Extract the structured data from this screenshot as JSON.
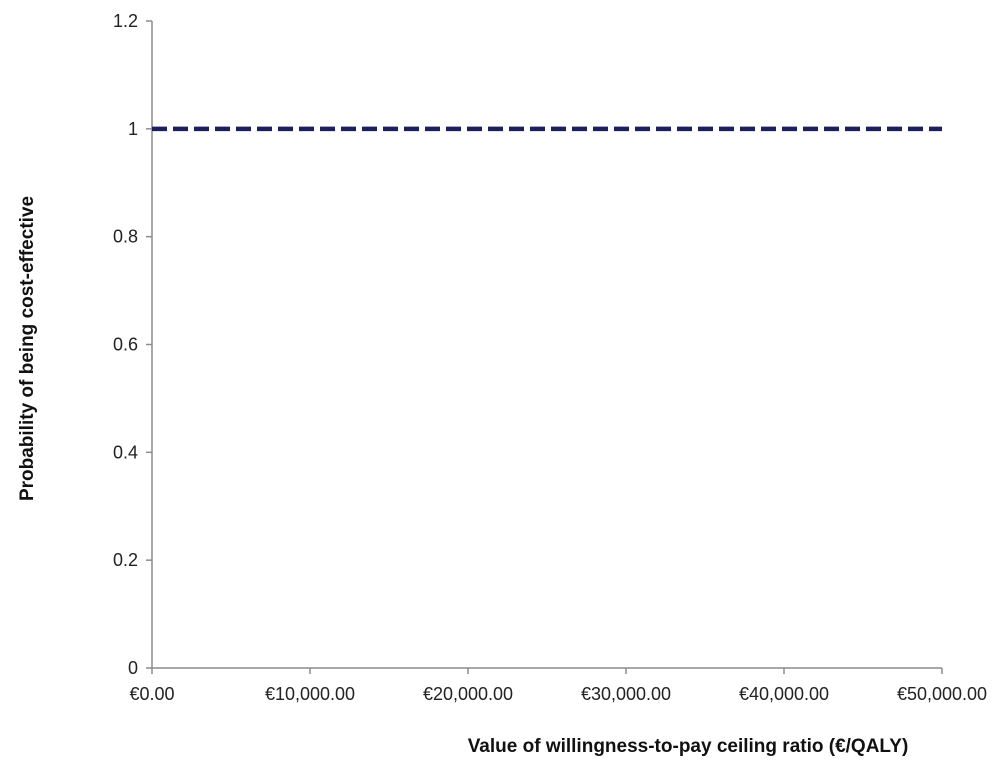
{
  "chart_data": {
    "type": "line",
    "title": "",
    "xlabel": "Value of willingness-to-pay ceiling ratio (€/QALY)",
    "ylabel": "Probability of being cost-effective",
    "xlim": [
      0,
      50000
    ],
    "ylim": [
      0,
      1.2
    ],
    "x_ticks": [
      0,
      10000,
      20000,
      30000,
      40000,
      50000
    ],
    "x_tick_labels": [
      "€0.00",
      "€10,000.00",
      "€20,000.00",
      "€30,000.00",
      "€40,000.00",
      "€50,000.00"
    ],
    "y_ticks": [
      0,
      0.2,
      0.4,
      0.6,
      0.8,
      1,
      1.2
    ],
    "y_tick_labels": [
      "0",
      "0.2",
      "0.4",
      "0.6",
      "0.8",
      "1",
      "1.2"
    ],
    "grid": false,
    "legend": "none",
    "series": [
      {
        "line_style": "dashed",
        "color": "#1b1f5e",
        "x": [
          0,
          50000
        ],
        "y": [
          1,
          1
        ]
      }
    ]
  }
}
